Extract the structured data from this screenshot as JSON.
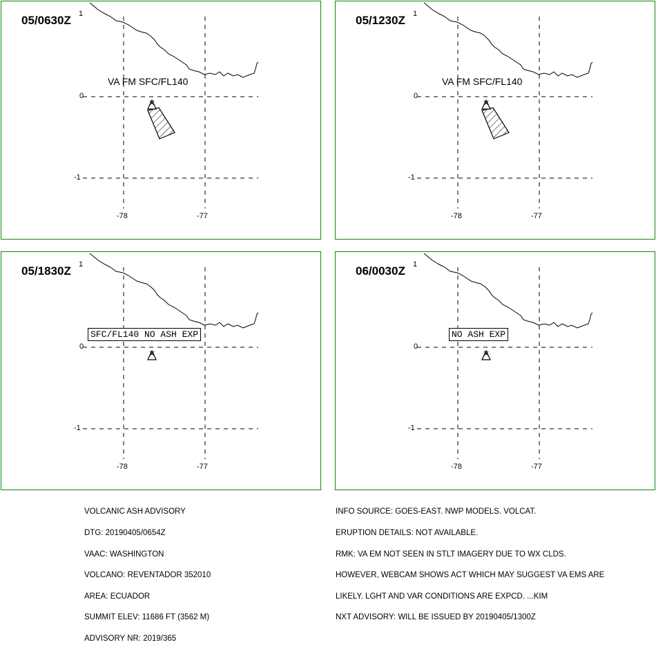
{
  "panels": [
    {
      "time": "05/0630Z",
      "ash_label": "VA FM SFC/FL140",
      "box_label": "",
      "has_ash": true
    },
    {
      "time": "05/1230Z",
      "ash_label": "VA FM SFC/FL140",
      "box_label": "",
      "has_ash": true
    },
    {
      "time": "05/1830Z",
      "ash_label": "",
      "box_label": "SFC/FL140 NO ASH EXP",
      "has_ash": false
    },
    {
      "time": "06/0030Z",
      "ash_label": "",
      "box_label": "NO ASH EXP",
      "has_ash": false
    }
  ],
  "axis": {
    "lat_labels": [
      "1",
      "0",
      "-1"
    ],
    "lon_labels": [
      "-78",
      "-77"
    ]
  },
  "advisory_left": [
    "VOLCANIC ASH ADVISORY",
    "DTG: 20190405/0654Z",
    "VAAC: WASHINGTON",
    "VOLCANO: REVENTADOR 352010",
    "AREA: ECUADOR",
    "SUMMIT ELEV: 11686 FT (3562 M)",
    "ADVISORY NR: 2019/365"
  ],
  "advisory_right": [
    "INFO SOURCE: GOES-EAST. NWP MODELS. VOLCAT.",
    "ERUPTION DETAILS: NOT AVAILABLE.",
    "RMK: VA EM NOT SEEN IN STLT IMAGERY DUE TO WX CLDS.",
    "HOWEVER, WEBCAM SHOWS ACT WHICH MAY SUGGEST VA EMS ARE",
    "LIKELY. LGHT AND VAR CONDITIONS ARE EXPCD. ...KIM",
    "NXT ADVISORY: WILL BE ISSUED BY 20190405/1300Z"
  ],
  "colors": {
    "panel_border": "#0a8a0a",
    "ink": "#000000"
  }
}
